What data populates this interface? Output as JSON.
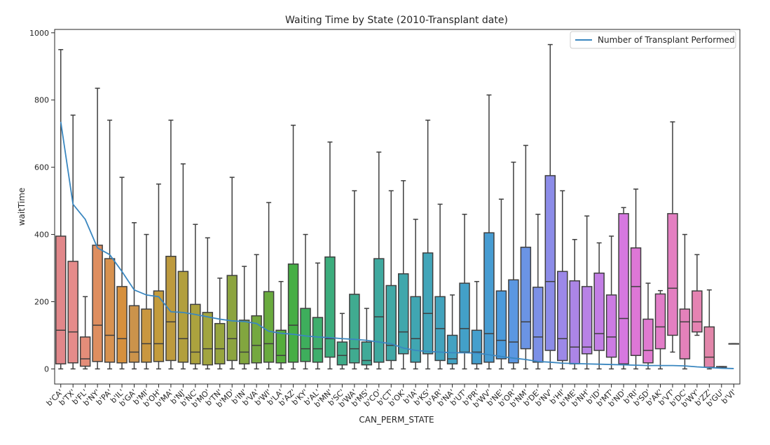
{
  "chart_data": {
    "type": "box",
    "title": "Waiting Time by State (2010-Transplant date)",
    "xlabel": "CAN_PERM_STATE",
    "ylabel": "waitTime",
    "ylim": [
      -45,
      1010
    ],
    "yticks": [
      0,
      200,
      400,
      600,
      800,
      1000
    ],
    "grid": false,
    "legend": {
      "placement": "top-right",
      "entries": [
        "Number of Transplant Performed"
      ]
    },
    "categories": [
      "b'CA'",
      "b'TX'",
      "b'FL'",
      "b'NY'",
      "b'PA'",
      "b'IL'",
      "b'GA'",
      "b'MI'",
      "b'OH'",
      "b'MA'",
      "b'NJ'",
      "b'NC'",
      "b'MO'",
      "b'TN'",
      "b'MD'",
      "b'IN'",
      "b'VA'",
      "b'WI'",
      "b'LA'",
      "b'AZ'",
      "b'KY'",
      "b'AL'",
      "b'MN'",
      "b'SC'",
      "b'WA'",
      "b'MS'",
      "b'CO'",
      "b'CT'",
      "b'OK'",
      "b'IA'",
      "b'KS'",
      "b'AR'",
      "b'NA'",
      "b'UT'",
      "b'PR'",
      "b'WV'",
      "b'NE'",
      "b'OR'",
      "b'NM'",
      "b'DE'",
      "b'NV'",
      "b'HI'",
      "b'ME'",
      "b'NH'",
      "b'ID'",
      "b'MT'",
      "b'ND'",
      "b'RI'",
      "b'SD'",
      "b'AK'",
      "b'VT'",
      "b'DC'",
      "b'WY'",
      "b'ZZ'",
      "b'GU'",
      "b'VI'"
    ],
    "box_series": {
      "whisker_low": [
        0,
        0,
        0,
        0,
        0,
        0,
        0,
        0,
        0,
        0,
        0,
        0,
        0,
        0,
        0,
        0,
        0,
        0,
        0,
        0,
        0,
        0,
        0,
        0,
        0,
        0,
        0,
        0,
        0,
        0,
        0,
        0,
        0,
        0,
        0,
        0,
        0,
        0,
        0,
        0,
        0,
        0,
        0,
        0,
        0,
        0,
        0,
        0,
        0,
        0,
        50,
        0,
        100,
        0,
        3,
        75
      ],
      "q1": [
        15,
        18,
        8,
        22,
        20,
        18,
        20,
        20,
        22,
        25,
        20,
        15,
        12,
        15,
        25,
        15,
        18,
        20,
        18,
        20,
        22,
        20,
        35,
        12,
        18,
        12,
        20,
        25,
        45,
        20,
        45,
        25,
        15,
        50,
        15,
        20,
        30,
        18,
        60,
        20,
        55,
        25,
        15,
        45,
        55,
        35,
        15,
        40,
        18,
        60,
        100,
        30,
        110,
        5,
        3,
        75
      ],
      "median": [
        115,
        110,
        30,
        130,
        100,
        90,
        50,
        75,
        75,
        140,
        90,
        50,
        60,
        60,
        90,
        50,
        70,
        75,
        40,
        130,
        60,
        60,
        90,
        40,
        60,
        25,
        155,
        70,
        110,
        90,
        165,
        120,
        30,
        120,
        50,
        105,
        85,
        80,
        140,
        95,
        260,
        90,
        65,
        65,
        105,
        95,
        150,
        245,
        55,
        125,
        240,
        140,
        140,
        35,
        4,
        75
      ],
      "q3": [
        395,
        320,
        95,
        368,
        328,
        245,
        188,
        178,
        232,
        335,
        290,
        192,
        168,
        135,
        278,
        145,
        158,
        230,
        115,
        312,
        180,
        153,
        333,
        80,
        222,
        80,
        328,
        248,
        283,
        215,
        345,
        215,
        100,
        255,
        115,
        405,
        232,
        265,
        362,
        243,
        575,
        290,
        262,
        245,
        285,
        220,
        462,
        360,
        148,
        223,
        462,
        178,
        232,
        125,
        7,
        75
      ],
      "whisker_high": [
        950,
        755,
        215,
        835,
        740,
        570,
        435,
        400,
        550,
        740,
        610,
        430,
        390,
        270,
        570,
        305,
        340,
        495,
        260,
        725,
        400,
        315,
        675,
        165,
        530,
        180,
        645,
        530,
        560,
        445,
        740,
        490,
        220,
        460,
        260,
        815,
        505,
        615,
        665,
        460,
        965,
        530,
        385,
        455,
        375,
        395,
        480,
        535,
        255,
        233,
        735,
        400,
        340,
        235,
        7,
        75
      ],
      "colors": [
        "#e1878a",
        "#e58b8a",
        "#e48d79",
        "#de8e5f",
        "#d89250",
        "#d6903d",
        "#cb934b",
        "#c9973f",
        "#c49c3c",
        "#bd9a3e",
        "#b29f3d",
        "#aca23e",
        "#a2a53f",
        "#97a53f",
        "#8ca43f",
        "#82a63f",
        "#74a83f",
        "#6aab3f",
        "#56ad3c",
        "#46ae45",
        "#3eae5c",
        "#3fae6d",
        "#3cad7d",
        "#3fab88",
        "#40ab90",
        "#40aa98",
        "#3fa99f",
        "#40a8a6",
        "#40a7ac",
        "#40a6b2",
        "#42a5b9",
        "#42a3bd",
        "#43a2c2",
        "#43a0c8",
        "#459fcd",
        "#479cd2",
        "#4b9adb",
        "#5b97e1",
        "#6b94e4",
        "#7c90e7",
        "#8c8ce8",
        "#9c88e8",
        "#ab85e6",
        "#b882e6",
        "#c37ee5",
        "#cc7be3",
        "#d678e0",
        "#dd77d6",
        "#e07ad0",
        "#e27dc8",
        "#e37fc1",
        "#e481ba",
        "#e583b2",
        "#e286aa",
        "#e289a2",
        "#e28b9b"
      ]
    },
    "series": [
      {
        "name": "Number of Transplant Performed",
        "color": "#3a87c0",
        "values": [
          735,
          490,
          445,
          360,
          340,
          290,
          235,
          220,
          215,
          170,
          168,
          162,
          155,
          148,
          143,
          141,
          135,
          112,
          106,
          103,
          98,
          95,
          93,
          90,
          88,
          85,
          80,
          75,
          62,
          55,
          52,
          50,
          48,
          48,
          47,
          42,
          37,
          32,
          28,
          22,
          20,
          17,
          16,
          15,
          14,
          13,
          12,
          11,
          10,
          10,
          10,
          9,
          6,
          4,
          2,
          1
        ]
      }
    ]
  }
}
